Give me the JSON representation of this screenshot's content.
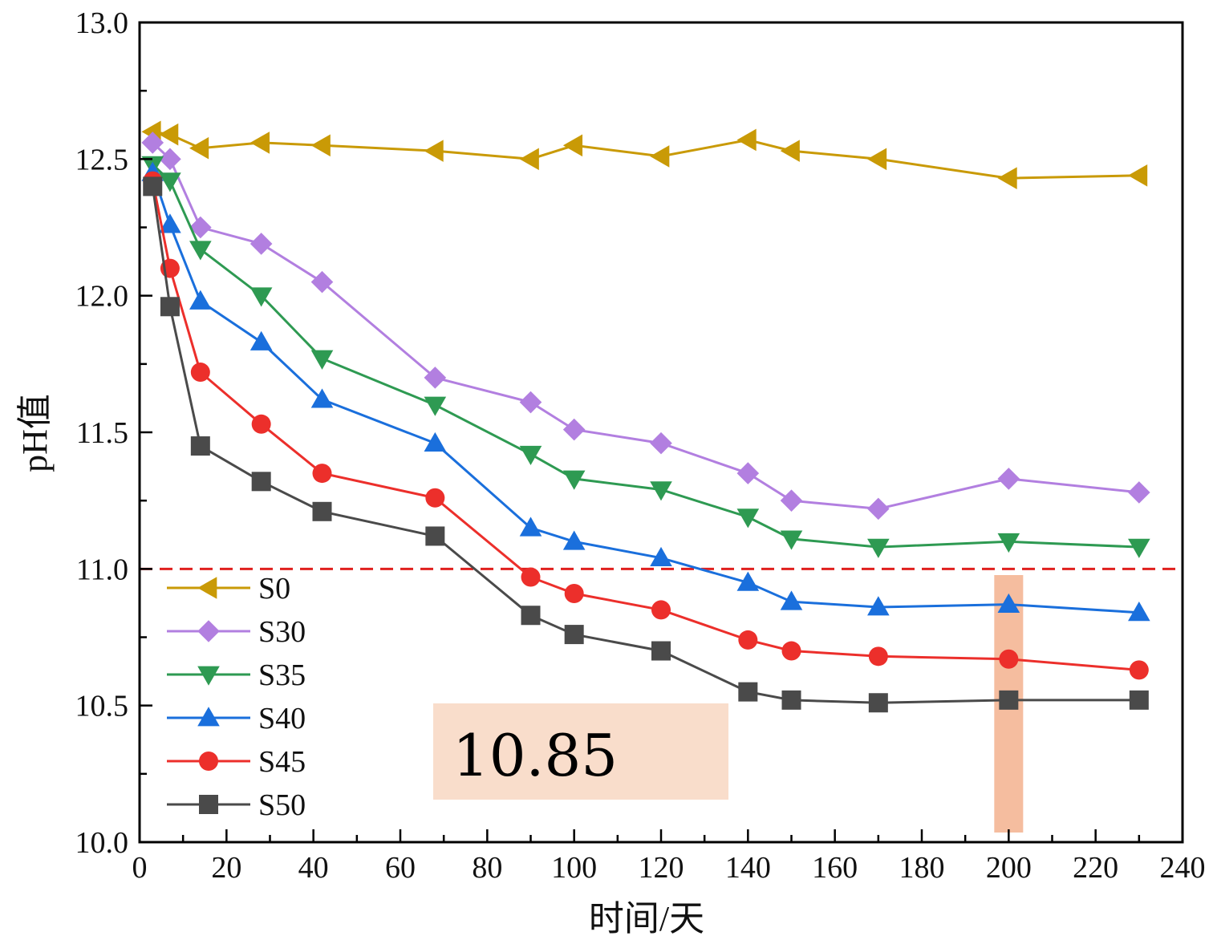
{
  "chart_data": {
    "type": "line",
    "xlabel": "时间/天",
    "ylabel": "pH值",
    "xlim": [
      0,
      240
    ],
    "ylim": [
      10.0,
      13.0
    ],
    "x_ticks": [
      "0",
      "20",
      "40",
      "60",
      "80",
      "100",
      "120",
      "140",
      "160",
      "180",
      "200",
      "220",
      "240"
    ],
    "y_ticks": [
      "10.0",
      "10.5",
      "11.0",
      "11.5",
      "12.0",
      "12.5",
      "13.0"
    ],
    "grid": false,
    "legend_position": "bottom-left",
    "reference_line": {
      "y": 11.0,
      "color": "#e0201e",
      "style": "dashed"
    },
    "highlight": {
      "x": 200,
      "color": "#f2a77f"
    },
    "annotation": {
      "text": "10.85",
      "color": "#f9ddcb"
    },
    "series": [
      {
        "name": "S0",
        "color": "#c99a06",
        "marker": "triangle-left",
        "x": [
          3,
          7,
          14,
          28,
          42,
          68,
          90,
          100,
          120,
          140,
          150,
          170,
          200,
          230
        ],
        "y": [
          12.6,
          12.59,
          12.54,
          12.56,
          12.55,
          12.53,
          12.5,
          12.55,
          12.51,
          12.57,
          12.53,
          12.5,
          12.43,
          12.44
        ]
      },
      {
        "name": "S30",
        "color": "#b27fe0",
        "marker": "diamond",
        "x": [
          3,
          7,
          14,
          28,
          42,
          68,
          90,
          100,
          120,
          140,
          150,
          170,
          200,
          230
        ],
        "y": [
          12.56,
          12.5,
          12.25,
          12.19,
          12.05,
          11.7,
          11.61,
          11.51,
          11.46,
          11.35,
          11.25,
          11.22,
          11.33,
          11.28
        ]
      },
      {
        "name": "S35",
        "color": "#2e9a52",
        "marker": "triangle-down",
        "x": [
          3,
          7,
          14,
          28,
          42,
          68,
          90,
          100,
          120,
          140,
          150,
          170,
          200,
          230
        ],
        "y": [
          12.48,
          12.42,
          12.17,
          12.0,
          11.77,
          11.6,
          11.42,
          11.33,
          11.29,
          11.19,
          11.11,
          11.08,
          11.1,
          11.08
        ]
      },
      {
        "name": "S40",
        "color": "#1a6fdc",
        "marker": "triangle-up",
        "x": [
          3,
          7,
          14,
          28,
          42,
          68,
          90,
          100,
          120,
          140,
          150,
          170,
          200,
          230
        ],
        "y": [
          12.45,
          12.26,
          11.98,
          11.83,
          11.62,
          11.46,
          11.15,
          11.1,
          11.04,
          10.95,
          10.88,
          10.86,
          10.87,
          10.84
        ]
      },
      {
        "name": "S45",
        "color": "#ec2f2b",
        "marker": "circle",
        "x": [
          3,
          7,
          14,
          28,
          42,
          68,
          90,
          100,
          120,
          140,
          150,
          170,
          200,
          230
        ],
        "y": [
          12.42,
          12.1,
          11.72,
          11.53,
          11.35,
          11.26,
          10.97,
          10.91,
          10.85,
          10.74,
          10.7,
          10.68,
          10.67,
          10.63
        ]
      },
      {
        "name": "S50",
        "color": "#4a4a4a",
        "marker": "square",
        "x": [
          3,
          7,
          14,
          28,
          42,
          68,
          90,
          100,
          120,
          140,
          150,
          170,
          200,
          230
        ],
        "y": [
          12.4,
          11.96,
          11.45,
          11.32,
          11.21,
          11.12,
          10.83,
          10.76,
          10.7,
          10.55,
          10.52,
          10.51,
          10.52,
          10.52
        ]
      }
    ]
  }
}
